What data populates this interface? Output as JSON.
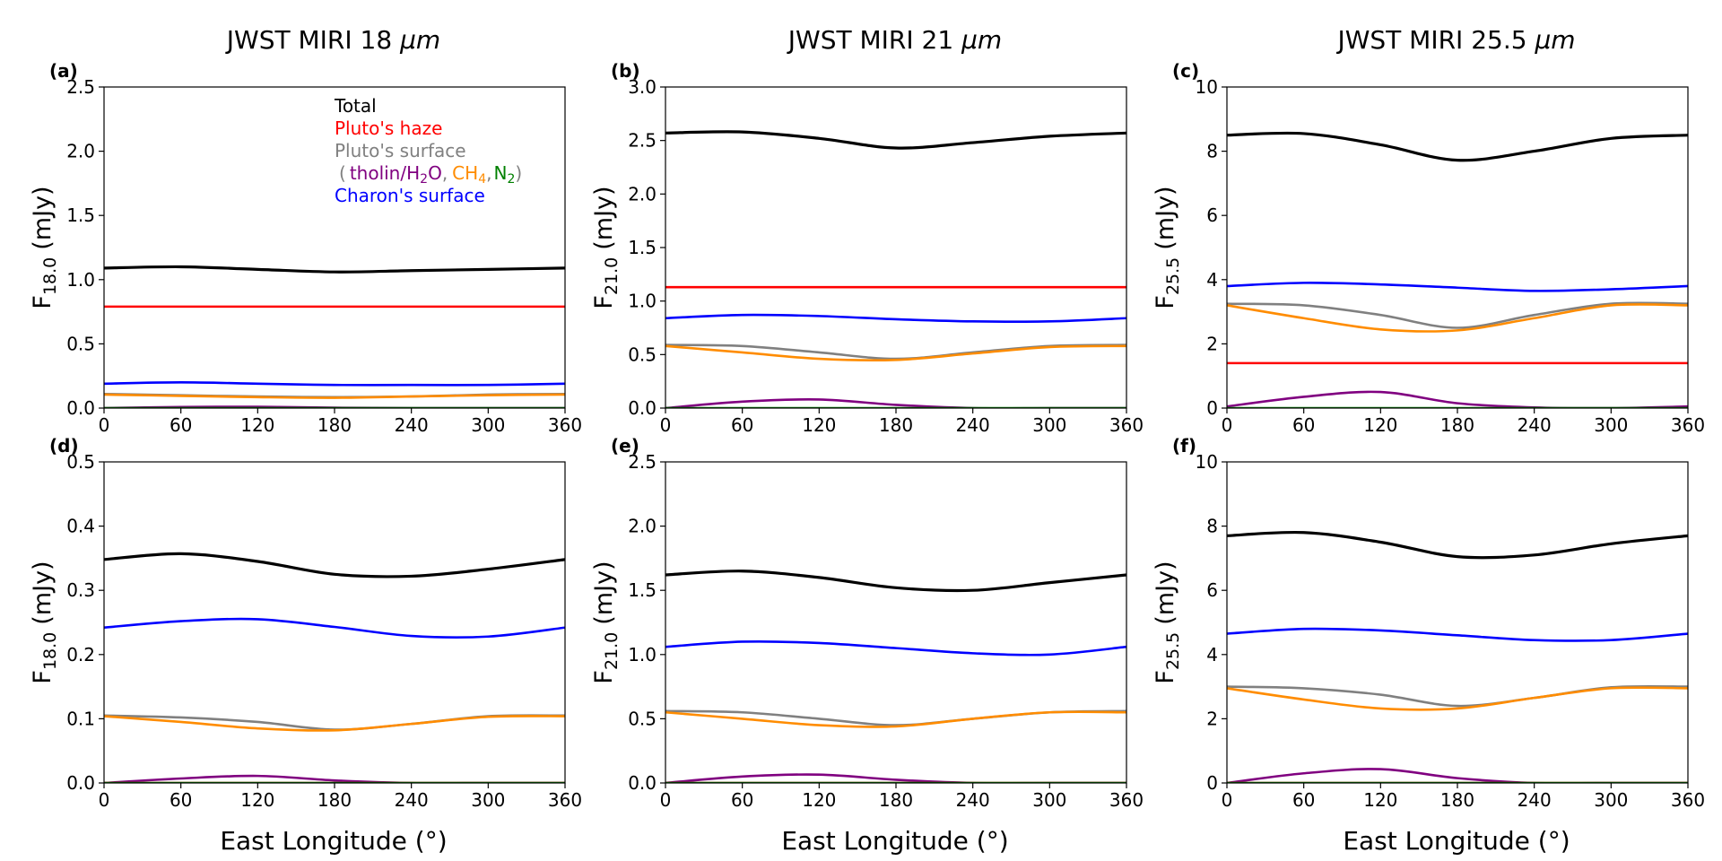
{
  "colors": {
    "total": "#000000",
    "haze": "#ff0000",
    "pluto_surface": "#808080",
    "tholin": "#800080",
    "ch4": "#ff8c00",
    "n2": "#008000",
    "charon": "#0000ff"
  },
  "column_titles": [
    {
      "prefix": "JWST MIRI ",
      "value": "18",
      "unit": "μm"
    },
    {
      "prefix": "JWST MIRI ",
      "value": "21",
      "unit": "μm"
    },
    {
      "prefix": "JWST MIRI ",
      "value": "25.5",
      "unit": "μm"
    }
  ],
  "x_axis_label": "East Longitude (°)",
  "legend": {
    "total": "Total",
    "haze": "Pluto's haze",
    "pluto_surface": "Pluto's surface",
    "open_paren": "(",
    "tholin": "tholin/H",
    "tholin_sub": "2",
    "tholin_tail": "O",
    "sep1": ",",
    "ch4": "CH",
    "ch4_sub": "4",
    "sep2": ",",
    "n2": "N",
    "n2_sub": "2",
    "close_paren": ")",
    "charon": "Charon's surface"
  },
  "chart_data": [
    {
      "type": "line",
      "label": "(a)",
      "title": "JWST MIRI 18 μm",
      "ylabel_main": "F",
      "ylabel_sub": "18.0",
      "ylabel_unit": "(mJy)",
      "xlim": [
        0,
        360
      ],
      "ylim": [
        0,
        2.5
      ],
      "xticks": [
        0,
        60,
        120,
        180,
        240,
        300,
        360
      ],
      "yticks": [
        "0.0",
        "0.5",
        "1.0",
        "1.5",
        "2.0",
        "2.5"
      ],
      "series": [
        {
          "name": "Total",
          "key": "total",
          "x": [
            0,
            60,
            120,
            180,
            240,
            300,
            360
          ],
          "y": [
            1.09,
            1.1,
            1.08,
            1.06,
            1.07,
            1.08,
            1.09
          ]
        },
        {
          "name": "Pluto's haze",
          "key": "haze",
          "x": [
            0,
            360
          ],
          "y": [
            0.79,
            0.79
          ]
        },
        {
          "name": "Charon's surface",
          "key": "charon",
          "x": [
            0,
            60,
            120,
            180,
            240,
            300,
            360
          ],
          "y": [
            0.19,
            0.2,
            0.19,
            0.18,
            0.18,
            0.18,
            0.19
          ]
        },
        {
          "name": "Pluto's surface",
          "key": "pluto_surface",
          "x": [
            0,
            60,
            120,
            180,
            240,
            300,
            360
          ],
          "y": [
            0.11,
            0.1,
            0.09,
            0.085,
            0.09,
            0.105,
            0.11
          ]
        },
        {
          "name": "CH4",
          "key": "ch4",
          "x": [
            0,
            60,
            120,
            180,
            240,
            300,
            360
          ],
          "y": [
            0.105,
            0.095,
            0.085,
            0.08,
            0.09,
            0.1,
            0.105
          ]
        },
        {
          "name": "tholin/H2O",
          "key": "tholin",
          "x": [
            0,
            60,
            120,
            180,
            240,
            300,
            360
          ],
          "y": [
            0.0,
            0.008,
            0.01,
            0.003,
            0.0,
            0.0,
            0.0
          ]
        },
        {
          "name": "N2",
          "key": "n2",
          "x": [
            0,
            360
          ],
          "y": [
            0.0,
            0.0
          ]
        }
      ]
    },
    {
      "type": "line",
      "label": "(b)",
      "title": "JWST MIRI 21 μm",
      "ylabel_main": "F",
      "ylabel_sub": "21.0",
      "ylabel_unit": "(mJy)",
      "xlim": [
        0,
        360
      ],
      "ylim": [
        0,
        3.0
      ],
      "xticks": [
        0,
        60,
        120,
        180,
        240,
        300,
        360
      ],
      "yticks": [
        "0.0",
        "0.5",
        "1.0",
        "1.5",
        "2.0",
        "2.5",
        "3.0"
      ],
      "series": [
        {
          "name": "Total",
          "key": "total",
          "x": [
            0,
            60,
            120,
            180,
            240,
            300,
            360
          ],
          "y": [
            2.57,
            2.58,
            2.52,
            2.43,
            2.48,
            2.54,
            2.57
          ]
        },
        {
          "name": "Pluto's haze",
          "key": "haze",
          "x": [
            0,
            360
          ],
          "y": [
            1.13,
            1.13
          ]
        },
        {
          "name": "Charon's surface",
          "key": "charon",
          "x": [
            0,
            60,
            120,
            180,
            240,
            300,
            360
          ],
          "y": [
            0.84,
            0.87,
            0.86,
            0.83,
            0.81,
            0.81,
            0.84
          ]
        },
        {
          "name": "Pluto's surface",
          "key": "pluto_surface",
          "x": [
            0,
            60,
            120,
            180,
            240,
            300,
            360
          ],
          "y": [
            0.59,
            0.58,
            0.52,
            0.46,
            0.52,
            0.58,
            0.59
          ]
        },
        {
          "name": "CH4",
          "key": "ch4",
          "x": [
            0,
            60,
            120,
            180,
            240,
            300,
            360
          ],
          "y": [
            0.58,
            0.52,
            0.46,
            0.45,
            0.51,
            0.57,
            0.58
          ]
        },
        {
          "name": "tholin/H2O",
          "key": "tholin",
          "x": [
            0,
            60,
            120,
            180,
            240,
            300,
            360
          ],
          "y": [
            0.0,
            0.06,
            0.08,
            0.03,
            0.0,
            0.0,
            0.0
          ]
        },
        {
          "name": "N2",
          "key": "n2",
          "x": [
            0,
            360
          ],
          "y": [
            0.0,
            0.0
          ]
        }
      ]
    },
    {
      "type": "line",
      "label": "(c)",
      "title": "JWST MIRI 25.5 μm",
      "ylabel_main": "F",
      "ylabel_sub": "25.5",
      "ylabel_unit": "(mJy)",
      "xlim": [
        0,
        360
      ],
      "ylim": [
        0,
        10
      ],
      "xticks": [
        0,
        60,
        120,
        180,
        240,
        300,
        360
      ],
      "yticks": [
        "0",
        "2",
        "4",
        "6",
        "8",
        "10"
      ],
      "series": [
        {
          "name": "Total",
          "key": "total",
          "x": [
            0,
            60,
            120,
            180,
            240,
            300,
            360
          ],
          "y": [
            8.5,
            8.55,
            8.2,
            7.72,
            8.0,
            8.4,
            8.5
          ]
        },
        {
          "name": "Charon's surface",
          "key": "charon",
          "x": [
            0,
            60,
            120,
            180,
            240,
            300,
            360
          ],
          "y": [
            3.8,
            3.9,
            3.85,
            3.75,
            3.65,
            3.7,
            3.8
          ]
        },
        {
          "name": "Pluto's surface",
          "key": "pluto_surface",
          "x": [
            0,
            60,
            120,
            180,
            240,
            300,
            360
          ],
          "y": [
            3.25,
            3.2,
            2.9,
            2.5,
            2.9,
            3.25,
            3.25
          ]
        },
        {
          "name": "CH4",
          "key": "ch4",
          "x": [
            0,
            60,
            120,
            180,
            240,
            300,
            360
          ],
          "y": [
            3.2,
            2.8,
            2.45,
            2.42,
            2.8,
            3.2,
            3.2
          ]
        },
        {
          "name": "Pluto's haze",
          "key": "haze",
          "x": [
            0,
            360
          ],
          "y": [
            1.4,
            1.4
          ]
        },
        {
          "name": "tholin/H2O",
          "key": "tholin",
          "x": [
            0,
            60,
            120,
            180,
            240,
            300,
            360
          ],
          "y": [
            0.05,
            0.35,
            0.5,
            0.15,
            0.02,
            0.0,
            0.05
          ]
        },
        {
          "name": "N2",
          "key": "n2",
          "x": [
            0,
            360
          ],
          "y": [
            0.0,
            0.0
          ]
        }
      ]
    },
    {
      "type": "line",
      "label": "(d)",
      "title": "",
      "ylabel_main": "F",
      "ylabel_sub": "18.0",
      "ylabel_unit": "(mJy)",
      "xlim": [
        0,
        360
      ],
      "ylim": [
        0,
        0.5
      ],
      "xticks": [
        0,
        60,
        120,
        180,
        240,
        300,
        360
      ],
      "yticks": [
        "0.0",
        "0.1",
        "0.2",
        "0.3",
        "0.4",
        "0.5"
      ],
      "series": [
        {
          "name": "Total",
          "key": "total",
          "x": [
            0,
            60,
            120,
            180,
            240,
            300,
            360
          ],
          "y": [
            0.348,
            0.357,
            0.345,
            0.325,
            0.322,
            0.333,
            0.348
          ]
        },
        {
          "name": "Charon's surface",
          "key": "charon",
          "x": [
            0,
            60,
            120,
            180,
            240,
            300,
            360
          ],
          "y": [
            0.242,
            0.252,
            0.255,
            0.243,
            0.229,
            0.228,
            0.242
          ]
        },
        {
          "name": "Pluto's surface",
          "key": "pluto_surface",
          "x": [
            0,
            60,
            120,
            180,
            240,
            300,
            360
          ],
          "y": [
            0.105,
            0.102,
            0.095,
            0.083,
            0.092,
            0.104,
            0.105
          ]
        },
        {
          "name": "CH4",
          "key": "ch4",
          "x": [
            0,
            60,
            120,
            180,
            240,
            300,
            360
          ],
          "y": [
            0.104,
            0.095,
            0.085,
            0.082,
            0.092,
            0.103,
            0.104
          ]
        },
        {
          "name": "tholin/H2O",
          "key": "tholin",
          "x": [
            0,
            60,
            120,
            180,
            240,
            300,
            360
          ],
          "y": [
            0.0,
            0.007,
            0.011,
            0.004,
            0.0,
            0.0,
            0.0
          ]
        },
        {
          "name": "Pluto's haze",
          "key": "haze",
          "x": [
            0,
            360
          ],
          "y": [
            0.0,
            0.0
          ]
        },
        {
          "name": "N2",
          "key": "n2",
          "x": [
            0,
            360
          ],
          "y": [
            0.0,
            0.0
          ]
        }
      ]
    },
    {
      "type": "line",
      "label": "(e)",
      "title": "",
      "ylabel_main": "F",
      "ylabel_sub": "21.0",
      "ylabel_unit": "(mJy)",
      "xlim": [
        0,
        360
      ],
      "ylim": [
        0,
        2.5
      ],
      "xticks": [
        0,
        60,
        120,
        180,
        240,
        300,
        360
      ],
      "yticks": [
        "0.0",
        "0.5",
        "1.0",
        "1.5",
        "2.0",
        "2.5"
      ],
      "series": [
        {
          "name": "Total",
          "key": "total",
          "x": [
            0,
            60,
            120,
            180,
            240,
            300,
            360
          ],
          "y": [
            1.62,
            1.65,
            1.6,
            1.52,
            1.5,
            1.56,
            1.62
          ]
        },
        {
          "name": "Charon's surface",
          "key": "charon",
          "x": [
            0,
            60,
            120,
            180,
            240,
            300,
            360
          ],
          "y": [
            1.06,
            1.1,
            1.09,
            1.05,
            1.01,
            1.0,
            1.06
          ]
        },
        {
          "name": "Pluto's surface",
          "key": "pluto_surface",
          "x": [
            0,
            60,
            120,
            180,
            240,
            300,
            360
          ],
          "y": [
            0.56,
            0.55,
            0.5,
            0.45,
            0.5,
            0.55,
            0.56
          ]
        },
        {
          "name": "CH4",
          "key": "ch4",
          "x": [
            0,
            60,
            120,
            180,
            240,
            300,
            360
          ],
          "y": [
            0.55,
            0.5,
            0.45,
            0.44,
            0.5,
            0.55,
            0.55
          ]
        },
        {
          "name": "tholin/H2O",
          "key": "tholin",
          "x": [
            0,
            60,
            120,
            180,
            240,
            300,
            360
          ],
          "y": [
            0.0,
            0.05,
            0.065,
            0.025,
            0.0,
            0.0,
            0.0
          ]
        },
        {
          "name": "Pluto's haze",
          "key": "haze",
          "x": [
            0,
            360
          ],
          "y": [
            0.0,
            0.0
          ]
        },
        {
          "name": "N2",
          "key": "n2",
          "x": [
            0,
            360
          ],
          "y": [
            0.0,
            0.0
          ]
        }
      ]
    },
    {
      "type": "line",
      "label": "(f)",
      "title": "",
      "ylabel_main": "F",
      "ylabel_sub": "25.5",
      "ylabel_unit": "(mJy)",
      "xlim": [
        0,
        360
      ],
      "ylim": [
        0,
        10
      ],
      "xticks": [
        0,
        60,
        120,
        180,
        240,
        300,
        360
      ],
      "yticks": [
        "0",
        "2",
        "4",
        "6",
        "8",
        "10"
      ],
      "series": [
        {
          "name": "Total",
          "key": "total",
          "x": [
            0,
            60,
            120,
            180,
            240,
            300,
            360
          ],
          "y": [
            7.7,
            7.8,
            7.5,
            7.05,
            7.1,
            7.45,
            7.7
          ]
        },
        {
          "name": "Charon's surface",
          "key": "charon",
          "x": [
            0,
            60,
            120,
            180,
            240,
            300,
            360
          ],
          "y": [
            4.65,
            4.8,
            4.75,
            4.6,
            4.45,
            4.45,
            4.65
          ]
        },
        {
          "name": "Pluto's surface",
          "key": "pluto_surface",
          "x": [
            0,
            60,
            120,
            180,
            240,
            300,
            360
          ],
          "y": [
            3.0,
            2.95,
            2.75,
            2.4,
            2.65,
            2.98,
            3.0
          ]
        },
        {
          "name": "CH4",
          "key": "ch4",
          "x": [
            0,
            60,
            120,
            180,
            240,
            300,
            360
          ],
          "y": [
            2.95,
            2.6,
            2.32,
            2.32,
            2.65,
            2.95,
            2.95
          ]
        },
        {
          "name": "tholin/H2O",
          "key": "tholin",
          "x": [
            0,
            60,
            120,
            180,
            240,
            300,
            360
          ],
          "y": [
            0.0,
            0.3,
            0.43,
            0.15,
            0.0,
            0.0,
            0.0
          ]
        },
        {
          "name": "Pluto's haze",
          "key": "haze",
          "x": [
            0,
            360
          ],
          "y": [
            0.0,
            0.0
          ]
        },
        {
          "name": "N2",
          "key": "n2",
          "x": [
            0,
            360
          ],
          "y": [
            0.0,
            0.0
          ]
        }
      ]
    }
  ]
}
